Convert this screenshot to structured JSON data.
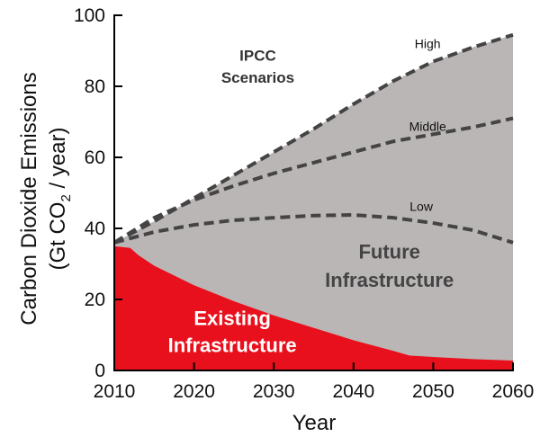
{
  "chart_data": {
    "type": "area",
    "title": "",
    "xlabel": "Year",
    "ylabel_line1": "Carbon Dioxide Emissions",
    "ylabel_line2_prefix": "(Gt CO",
    "ylabel_line2_sub": "2",
    "ylabel_line2_suffix": " / year)",
    "xlim": [
      2010,
      2060
    ],
    "ylim": [
      0,
      100
    ],
    "x_ticks": [
      2010,
      2020,
      2030,
      2040,
      2050,
      2060
    ],
    "y_ticks": [
      0,
      20,
      40,
      60,
      80,
      100
    ],
    "grid": false,
    "series": [
      {
        "name": "Existing Infrastructure",
        "kind": "filled-area",
        "color": "#e8101c",
        "x": [
          2010,
          2012,
          2013,
          2015,
          2020,
          2025,
          2030,
          2035,
          2040,
          2045,
          2047,
          2050,
          2055,
          2060
        ],
        "values": [
          35,
          34.5,
          32.5,
          29.5,
          24,
          19.5,
          15.5,
          12,
          8.5,
          5.5,
          4.2,
          3.8,
          3.2,
          2.8
        ]
      },
      {
        "name": "Future Infrastructure",
        "kind": "filled-area",
        "color": "#bbb6b6",
        "x": [
          2010,
          2015,
          2020,
          2025,
          2030,
          2035,
          2040,
          2045,
          2050,
          2055,
          2060
        ],
        "values": [
          36,
          42,
          48.5,
          55,
          61.5,
          68,
          75,
          81.5,
          87,
          91,
          94.5
        ]
      },
      {
        "name": "High",
        "kind": "dashed-line",
        "color": "#444444",
        "x": [
          2010,
          2015,
          2020,
          2025,
          2030,
          2035,
          2040,
          2045,
          2050,
          2055,
          2060
        ],
        "values": [
          36,
          42,
          48.5,
          55,
          61.5,
          68,
          75,
          81.5,
          87,
          91,
          94.5
        ]
      },
      {
        "name": "Middle",
        "kind": "dashed-line",
        "color": "#444444",
        "x": [
          2010,
          2015,
          2020,
          2025,
          2030,
          2035,
          2040,
          2045,
          2050,
          2055,
          2060
        ],
        "values": [
          36,
          43,
          48,
          52,
          55.5,
          58.5,
          61.5,
          64.5,
          66.5,
          68.5,
          71
        ]
      },
      {
        "name": "Low",
        "kind": "dashed-line",
        "color": "#444444",
        "x": [
          2010,
          2015,
          2020,
          2025,
          2030,
          2035,
          2040,
          2045,
          2050,
          2055,
          2060
        ],
        "values": [
          36,
          39,
          41,
          42.3,
          43,
          43.6,
          43.8,
          43,
          41.5,
          39.5,
          36
        ]
      }
    ],
    "annotations": [
      {
        "id": "ipcc-line1",
        "text": "IPCC",
        "x": 2028,
        "y": 87.2,
        "size": 17,
        "weight": "bold",
        "color": "#333333",
        "anchor": "middle"
      },
      {
        "id": "ipcc-line2",
        "text": "Scenarios",
        "x": 2028,
        "y": 81,
        "size": 17,
        "weight": "bold",
        "color": "#333333",
        "anchor": "middle"
      },
      {
        "id": "high-label",
        "text": "High",
        "x": 2049.3,
        "y": 90.8,
        "size": 14,
        "weight": "normal",
        "color": "#111111",
        "anchor": "middle"
      },
      {
        "id": "middle-label",
        "text": "Middle",
        "x": 2049.3,
        "y": 67.5,
        "size": 14,
        "weight": "normal",
        "color": "#111111",
        "anchor": "middle"
      },
      {
        "id": "low-label",
        "text": "Low",
        "x": 2048.5,
        "y": 45,
        "size": 14,
        "weight": "normal",
        "color": "#111111",
        "anchor": "middle"
      },
      {
        "id": "future-line1",
        "text": "Future",
        "x": 2044.5,
        "y": 31.5,
        "size": 22,
        "weight": "bold",
        "color": "#444444",
        "anchor": "middle"
      },
      {
        "id": "future-line2",
        "text": "Infrastructure",
        "x": 2044.5,
        "y": 23.5,
        "size": 22,
        "weight": "bold",
        "color": "#444444",
        "anchor": "middle"
      },
      {
        "id": "existing-line1",
        "text": "Existing",
        "x": 2024.8,
        "y": 12.8,
        "size": 22,
        "weight": "bold",
        "color": "#ffffff",
        "anchor": "middle"
      },
      {
        "id": "existing-line2",
        "text": "Infrastructure",
        "x": 2024.8,
        "y": 5.2,
        "size": 22,
        "weight": "bold",
        "color": "#ffffff",
        "anchor": "middle"
      }
    ]
  }
}
